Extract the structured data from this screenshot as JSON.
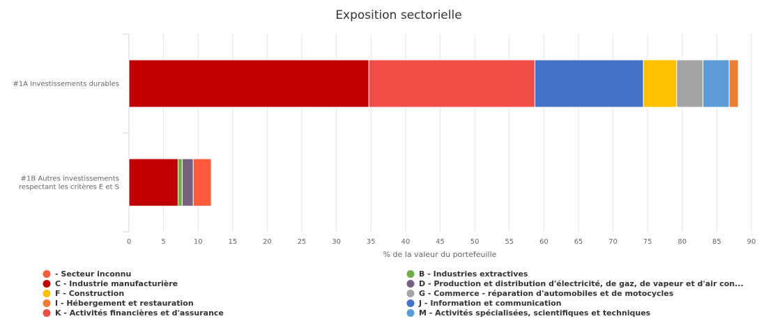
{
  "chart_data": {
    "type": "bar",
    "orientation": "horizontal",
    "stacked": true,
    "title": "Exposition sectorielle",
    "xlabel": "% de la valeur du portefeuille",
    "ylabel": "",
    "xlim": [
      0,
      90
    ],
    "xticks": [
      "0",
      "5",
      "10",
      "15",
      "20",
      "25",
      "30",
      "35",
      "40",
      "45",
      "50",
      "55",
      "60",
      "65",
      "70",
      "75",
      "80",
      "85",
      "90"
    ],
    "grid": true,
    "legend_position": "bottom",
    "categories": [
      [
        "#1A Investissements durables"
      ],
      [
        "#1B Autres investissements",
        "respectant les critères E et S"
      ]
    ],
    "series": [
      {
        "name": "C - Industrie manufacturière",
        "color": "#C00000",
        "values": [
          34.7,
          7.1
        ]
      },
      {
        "name": "B - Industries extractives",
        "color": "#70AD47",
        "values": [
          0,
          0.6
        ]
      },
      {
        "name": "D - Production et distribution d'électricité, de gaz, de vapeur et d'air con...",
        "color": "#75617F",
        "values": [
          0,
          1.6
        ]
      },
      {
        "name": "- Secteur inconnu",
        "color": "#FF5A3C",
        "values": [
          0,
          2.6
        ]
      },
      {
        "name": "K - Activités financières et d'assurance",
        "color": "#F04E45",
        "values": [
          24.0,
          0
        ]
      },
      {
        "name": "J - Information et communication",
        "color": "#4472C4",
        "values": [
          15.7,
          0
        ]
      },
      {
        "name": "F - Construction",
        "color": "#FFC000",
        "values": [
          4.8,
          0
        ]
      },
      {
        "name": "G - Commerce - réparation d'automobiles et de motocycles",
        "color": "#A5A5A5",
        "values": [
          3.8,
          0
        ]
      },
      {
        "name": "M - Activités spécialisées, scientifiques et techniques",
        "color": "#5B9BD5",
        "values": [
          3.8,
          0
        ]
      },
      {
        "name": "I - Hébergement et restauration",
        "color": "#ED7D31",
        "values": [
          1.3,
          0
        ]
      }
    ],
    "legend": [
      {
        "name": "- Secteur inconnu",
        "color": "#FF5A3C"
      },
      {
        "name": "B - Industries extractives",
        "color": "#70AD47"
      },
      {
        "name": "C - Industrie manufacturière",
        "color": "#C00000"
      },
      {
        "name": "D - Production et distribution d'électricité, de gaz, de vapeur et d'air con...",
        "color": "#75617F"
      },
      {
        "name": "F - Construction",
        "color": "#FFC000"
      },
      {
        "name": "G - Commerce - réparation d'automobiles et de motocycles",
        "color": "#A5A5A5"
      },
      {
        "name": "I - Hébergement et restauration",
        "color": "#ED7D31"
      },
      {
        "name": "J - Information et communication",
        "color": "#4472C4"
      },
      {
        "name": "K - Activités financières et d'assurance",
        "color": "#F04E45"
      },
      {
        "name": "M - Activités spécialisées, scientifiques et techniques",
        "color": "#5B9BD5"
      }
    ]
  }
}
